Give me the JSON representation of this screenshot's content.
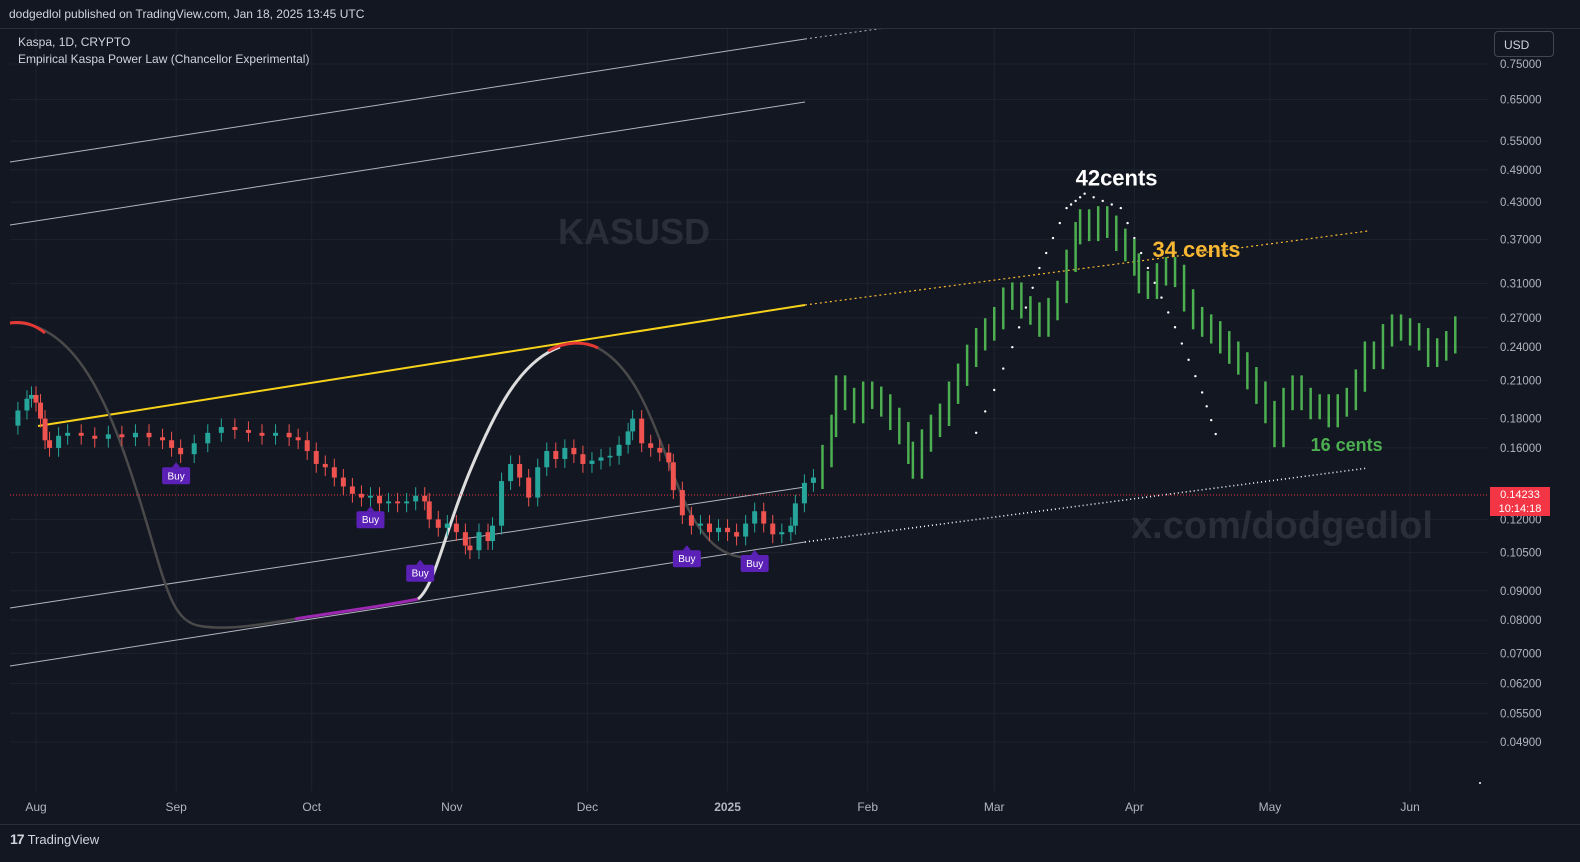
{
  "header": {
    "publisher_line": "dodgedlol published on TradingView.com, Jan 18, 2025 13:45 UTC"
  },
  "legend": {
    "symbol_line": "Kaspa, 1D, CRYPTO",
    "indicator_line": "Empirical Kaspa Power Law (Chancellor Experimental)"
  },
  "currency_button": "USD",
  "watermark": {
    "symbol": "KASUSD",
    "handle": "x.com/dodgedlol"
  },
  "last_price": {
    "value": "0.14233",
    "countdown": "10:14:18"
  },
  "footer": {
    "brand_name": "TradingView"
  },
  "colors": {
    "background": "#131722",
    "up_candle": "#26a69a",
    "down_candle": "#ef5350",
    "projection_green": "#4caf50",
    "power_law_yellow": "#f7d21a",
    "annotation_white": "#ffffff",
    "annotation_orange": "#f7b733",
    "annotation_green": "#4caf50",
    "buy_badge": "#5b21b6",
    "price_line": "#f23645"
  },
  "chart_data": {
    "type": "candlestick",
    "yscale": "log",
    "ylim": [
      0.046,
      0.8
    ],
    "xlim": [
      "2025-07-26",
      "2025-06-20"
    ],
    "y_ticks": [
      0.75,
      0.65,
      0.55,
      0.49,
      0.43,
      0.37,
      0.31,
      0.27,
      0.24,
      0.21,
      0.18,
      0.16,
      0.12,
      0.105,
      0.09,
      0.08,
      0.07,
      0.062,
      0.055,
      0.049
    ],
    "y_tick_labels": [
      "0.75000",
      "0.65000",
      "0.55000",
      "0.49000",
      "0.43000",
      "0.37000",
      "0.31000",
      "0.27000",
      "0.24000",
      "0.21000",
      "0.18000",
      "0.16000",
      "0.12000",
      "0.10500",
      "0.09000",
      "0.08000",
      "0.07000",
      "0.06200",
      "0.05500",
      "0.04900"
    ],
    "x_tick_labels": [
      "Aug",
      "Sep",
      "Oct",
      "Nov",
      "Dec",
      "2025",
      "Feb",
      "Mar",
      "Apr",
      "May",
      "Jun"
    ],
    "x_tick_days": [
      6,
      37,
      67,
      98,
      128,
      159,
      190,
      218,
      249,
      279,
      310
    ],
    "last_price": 0.14233,
    "historical_closes": [
      [
        0,
        0.175
      ],
      [
        2,
        0.186
      ],
      [
        4,
        0.195
      ],
      [
        5,
        0.198
      ],
      [
        6,
        0.192
      ],
      [
        7,
        0.18
      ],
      [
        8,
        0.165
      ],
      [
        9,
        0.16
      ],
      [
        11,
        0.168
      ],
      [
        13,
        0.17
      ],
      [
        16,
        0.168
      ],
      [
        19,
        0.166
      ],
      [
        22,
        0.169
      ],
      [
        25,
        0.167
      ],
      [
        28,
        0.17
      ],
      [
        31,
        0.167
      ],
      [
        34,
        0.165
      ],
      [
        36,
        0.16
      ],
      [
        38,
        0.156
      ],
      [
        41,
        0.163
      ],
      [
        44,
        0.17
      ],
      [
        47,
        0.174
      ],
      [
        50,
        0.172
      ],
      [
        53,
        0.17
      ],
      [
        56,
        0.168
      ],
      [
        59,
        0.17
      ],
      [
        62,
        0.167
      ],
      [
        64,
        0.165
      ],
      [
        66,
        0.158
      ],
      [
        68,
        0.15
      ],
      [
        70,
        0.148
      ],
      [
        72,
        0.142
      ],
      [
        74,
        0.137
      ],
      [
        76,
        0.133
      ],
      [
        78,
        0.131
      ],
      [
        80,
        0.132
      ],
      [
        82,
        0.128
      ],
      [
        84,
        0.129
      ],
      [
        86,
        0.128
      ],
      [
        88,
        0.129
      ],
      [
        90,
        0.132
      ],
      [
        92,
        0.129
      ],
      [
        93,
        0.12
      ],
      [
        95,
        0.116
      ],
      [
        97,
        0.118
      ],
      [
        99,
        0.114
      ],
      [
        101,
        0.108
      ],
      [
        102,
        0.106
      ],
      [
        104,
        0.114
      ],
      [
        106,
        0.11
      ],
      [
        107,
        0.117
      ],
      [
        109,
        0.14
      ],
      [
        111,
        0.15
      ],
      [
        113,
        0.142
      ],
      [
        115,
        0.131
      ],
      [
        117,
        0.148
      ],
      [
        119,
        0.158
      ],
      [
        121,
        0.153
      ],
      [
        123,
        0.16
      ],
      [
        125,
        0.156
      ],
      [
        127,
        0.15
      ],
      [
        129,
        0.152
      ],
      [
        131,
        0.154
      ],
      [
        133,
        0.155
      ],
      [
        135,
        0.162
      ],
      [
        137,
        0.171
      ],
      [
        138,
        0.18
      ],
      [
        140,
        0.163
      ],
      [
        142,
        0.16
      ],
      [
        144,
        0.157
      ],
      [
        146,
        0.151
      ],
      [
        147,
        0.135
      ],
      [
        149,
        0.122
      ],
      [
        151,
        0.117
      ],
      [
        153,
        0.118
      ],
      [
        155,
        0.114
      ],
      [
        157,
        0.116
      ],
      [
        159,
        0.114
      ],
      [
        161,
        0.112
      ],
      [
        163,
        0.118
      ],
      [
        165,
        0.124
      ],
      [
        167,
        0.118
      ],
      [
        169,
        0.113
      ],
      [
        171,
        0.114
      ],
      [
        173,
        0.117
      ],
      [
        174,
        0.128
      ],
      [
        176,
        0.139
      ],
      [
        178,
        0.142
      ]
    ],
    "projection_closes": [
      [
        180,
        0.155
      ],
      [
        182,
        0.175
      ],
      [
        183,
        0.205
      ],
      [
        185,
        0.195
      ],
      [
        187,
        0.185
      ],
      [
        189,
        0.2
      ],
      [
        191,
        0.196
      ],
      [
        193,
        0.19
      ],
      [
        195,
        0.18
      ],
      [
        197,
        0.17
      ],
      [
        199,
        0.157
      ],
      [
        200,
        0.148
      ],
      [
        202,
        0.165
      ],
      [
        204,
        0.175
      ],
      [
        206,
        0.183
      ],
      [
        208,
        0.2
      ],
      [
        210,
        0.215
      ],
      [
        212,
        0.232
      ],
      [
        214,
        0.248
      ],
      [
        216,
        0.258
      ],
      [
        218,
        0.27
      ],
      [
        220,
        0.292
      ],
      [
        222,
        0.298
      ],
      [
        224,
        0.282
      ],
      [
        226,
        0.275
      ],
      [
        228,
        0.262
      ],
      [
        230,
        0.28
      ],
      [
        232,
        0.3
      ],
      [
        234,
        0.34
      ],
      [
        236,
        0.38
      ],
      [
        237,
        0.4
      ],
      [
        239,
        0.385
      ],
      [
        241,
        0.405
      ],
      [
        243,
        0.39
      ],
      [
        245,
        0.37
      ],
      [
        247,
        0.355
      ],
      [
        249,
        0.335
      ],
      [
        250,
        0.312
      ],
      [
        252,
        0.305
      ],
      [
        254,
        0.322
      ],
      [
        256,
        0.33
      ],
      [
        258,
        0.32
      ],
      [
        260,
        0.29
      ],
      [
        262,
        0.27
      ],
      [
        264,
        0.262
      ],
      [
        266,
        0.255
      ],
      [
        268,
        0.245
      ],
      [
        270,
        0.235
      ],
      [
        272,
        0.225
      ],
      [
        274,
        0.212
      ],
      [
        276,
        0.2
      ],
      [
        278,
        0.185
      ],
      [
        280,
        0.168
      ],
      [
        282,
        0.195
      ],
      [
        284,
        0.205
      ],
      [
        286,
        0.195
      ],
      [
        288,
        0.188
      ],
      [
        290,
        0.19
      ],
      [
        292,
        0.182
      ],
      [
        294,
        0.19
      ],
      [
        296,
        0.195
      ],
      [
        298,
        0.21
      ],
      [
        300,
        0.235
      ],
      [
        302,
        0.23
      ],
      [
        304,
        0.252
      ],
      [
        306,
        0.262
      ],
      [
        308,
        0.258
      ],
      [
        310,
        0.253
      ],
      [
        312,
        0.248
      ],
      [
        314,
        0.232
      ],
      [
        316,
        0.238
      ],
      [
        318,
        0.245
      ],
      [
        320,
        0.26
      ]
    ],
    "buy_signals": [
      {
        "label": "Buy",
        "day": 37,
        "price": 0.148
      },
      {
        "label": "Buy",
        "day": 80,
        "price": 0.124
      },
      {
        "label": "Buy",
        "day": 91,
        "price": 0.1
      },
      {
        "label": "Buy",
        "day": 150,
        "price": 0.106
      },
      {
        "label": "Buy",
        "day": 165,
        "price": 0.104
      }
    ],
    "annotations": [
      {
        "text": "42cents",
        "day": 236,
        "price": 0.46,
        "color": "annotation_white"
      },
      {
        "text": "34 cents",
        "day": 253,
        "price": 0.345,
        "color": "annotation_orange"
      },
      {
        "text": "16 cents",
        "day": 288,
        "price": 0.158,
        "color": "annotation_green"
      }
    ]
  }
}
